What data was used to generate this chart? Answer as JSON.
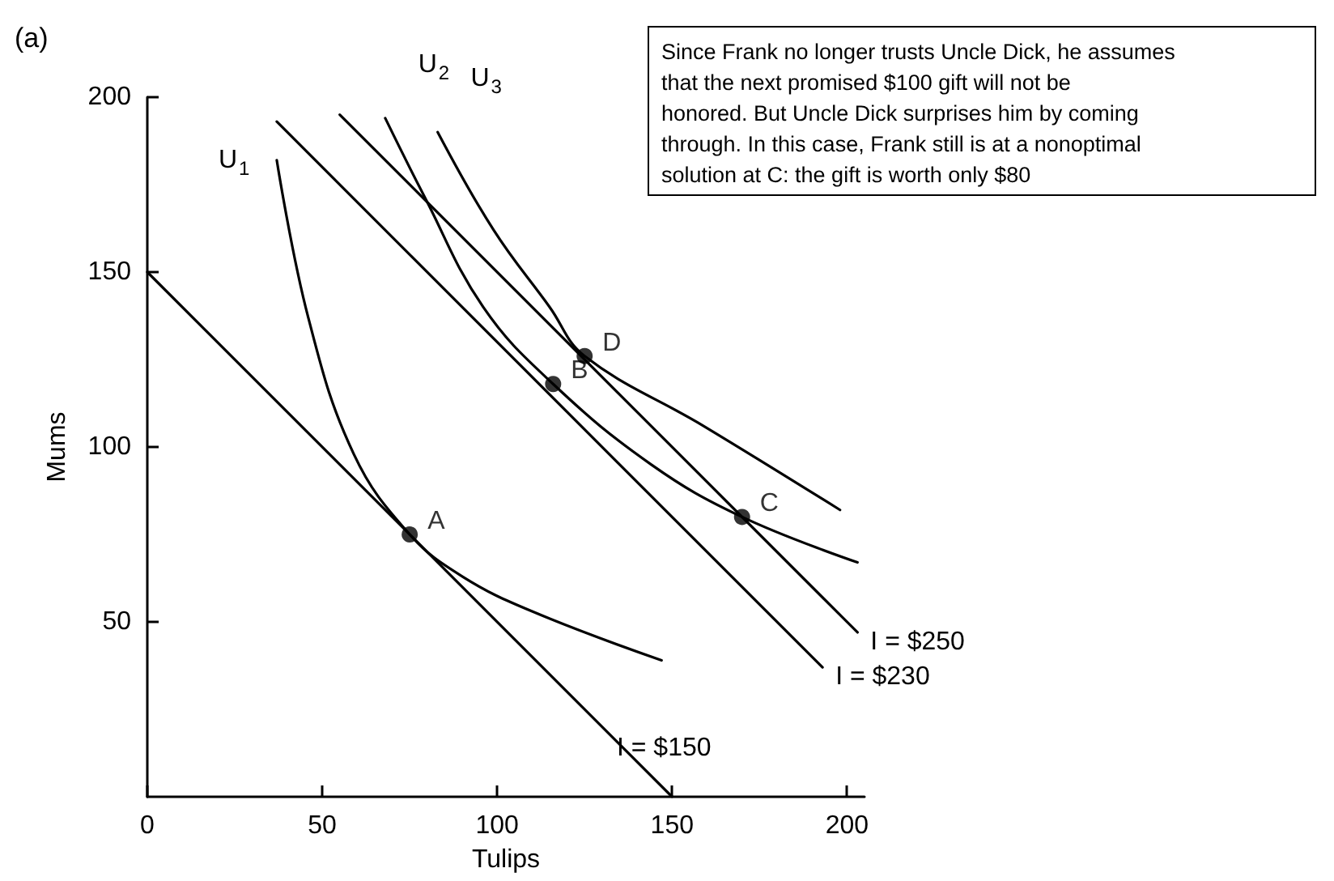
{
  "chart_data": {
    "type": "line",
    "title": "(a)",
    "xlabel": "Tulips",
    "ylabel": "Mums",
    "xlim": [
      0,
      205
    ],
    "xticks": [
      0,
      50,
      100,
      150,
      200
    ],
    "ylim": [
      0,
      200
    ],
    "yticks": [
      50,
      100,
      150,
      200
    ],
    "grid": false,
    "legend": false,
    "marker": "none",
    "line_style": "solid",
    "annotations": [
      "Since Frank no longer trusts Uncle Dick, he assumes\nthat the next promised $100 gift will not be\nhonored. But Uncle Dick surprises him by coming\nthrough. In this case, Frank still is at a nonoptimal\nsolution at C: the gift is worth only $80"
    ],
    "series": [
      {
        "name": "I = $150",
        "color": "#000000",
        "x": [
          0,
          150
        ],
        "values": [
          150,
          0
        ]
      },
      {
        "name": "I = $230",
        "color": "#000000",
        "x": [
          37,
          193
        ],
        "values": [
          193,
          37
        ]
      },
      {
        "name": "I = $250",
        "color": "#000000",
        "x": [
          55,
          203
        ],
        "values": [
          195,
          47
        ]
      },
      {
        "name": "U$_{1}$",
        "color": "#000000",
        "x": [
          37,
          46,
          59,
          75,
          90,
          110,
          147
        ],
        "values": [
          182,
          137,
          98,
          75,
          63,
          53,
          39
        ]
      },
      {
        "name": "U$_{2}$",
        "color": "#000000",
        "x": [
          68,
          79,
          96,
          116,
          144,
          170,
          203
        ],
        "values": [
          194,
          172,
          140,
          118,
          95,
          80,
          67
        ]
      },
      {
        "name": "U$_{3}$",
        "color": "#000000",
        "x": [
          83,
          99,
          115,
          125,
          159,
          198
        ],
        "values": [
          190,
          162,
          140,
          126,
          106,
          82
        ]
      },
      {
        "type": "scatter",
        "marker": "circle",
        "color": "#000000",
        "x": [
          75,
          116,
          125,
          170
        ],
        "values": [
          75,
          118,
          126,
          80
        ],
        "value_labels": [
          "A",
          "B",
          "D",
          "C"
        ]
      }
    ]
  }
}
